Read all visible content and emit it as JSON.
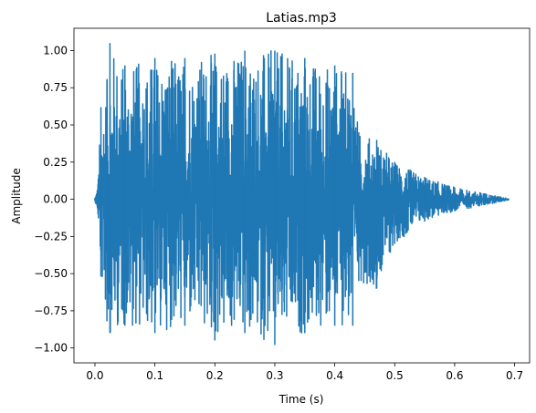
{
  "chart_data": {
    "type": "line",
    "title": "Latias.mp3",
    "xlabel": "Time (s)",
    "ylabel": "Amplitude",
    "xlim": [
      -0.035,
      0.725
    ],
    "ylim": [
      -1.1,
      1.15
    ],
    "x_ticks": [
      0.0,
      0.1,
      0.2,
      0.3,
      0.4,
      0.5,
      0.6,
      0.7
    ],
    "x_tick_labels": [
      "0.0",
      "0.1",
      "0.2",
      "0.3",
      "0.4",
      "0.5",
      "0.6",
      "0.7"
    ],
    "y_ticks": [
      -1.0,
      -0.75,
      -0.5,
      -0.25,
      0.0,
      0.25,
      0.5,
      0.75,
      1.0
    ],
    "y_tick_labels": [
      "−1.00",
      "−0.75",
      "−0.50",
      "−0.25",
      "0.00",
      "0.25",
      "0.50",
      "0.75",
      "1.00"
    ],
    "grid": false,
    "series": [
      {
        "color": "#1f77b4",
        "duration": 0.69,
        "envelope": [
          {
            "t": 0.0,
            "max": 0.01,
            "min": -0.01
          },
          {
            "t": 0.005,
            "max": 0.1,
            "min": -0.1
          },
          {
            "t": 0.01,
            "max": 0.62,
            "min": -0.52
          },
          {
            "t": 0.02,
            "max": 0.8,
            "min": -0.82
          },
          {
            "t": 0.025,
            "max": 1.05,
            "min": -0.9
          },
          {
            "t": 0.05,
            "max": 0.9,
            "min": -0.85
          },
          {
            "t": 0.1,
            "max": 0.95,
            "min": -0.9
          },
          {
            "t": 0.15,
            "max": 0.95,
            "min": -0.85
          },
          {
            "t": 0.2,
            "max": 0.98,
            "min": -0.95
          },
          {
            "t": 0.25,
            "max": 1.0,
            "min": -0.9
          },
          {
            "t": 0.3,
            "max": 1.0,
            "min": -0.98
          },
          {
            "t": 0.35,
            "max": 0.95,
            "min": -0.9
          },
          {
            "t": 0.4,
            "max": 0.9,
            "min": -0.85
          },
          {
            "t": 0.43,
            "max": 0.85,
            "min": -0.85
          },
          {
            "t": 0.44,
            "max": 0.45,
            "min": -0.55
          },
          {
            "t": 0.47,
            "max": 0.4,
            "min": -0.6
          },
          {
            "t": 0.5,
            "max": 0.25,
            "min": -0.3
          },
          {
            "t": 0.55,
            "max": 0.15,
            "min": -0.15
          },
          {
            "t": 0.6,
            "max": 0.08,
            "min": -0.08
          },
          {
            "t": 0.65,
            "max": 0.04,
            "min": -0.04
          },
          {
            "t": 0.69,
            "max": 0.005,
            "min": -0.005
          }
        ]
      }
    ]
  }
}
